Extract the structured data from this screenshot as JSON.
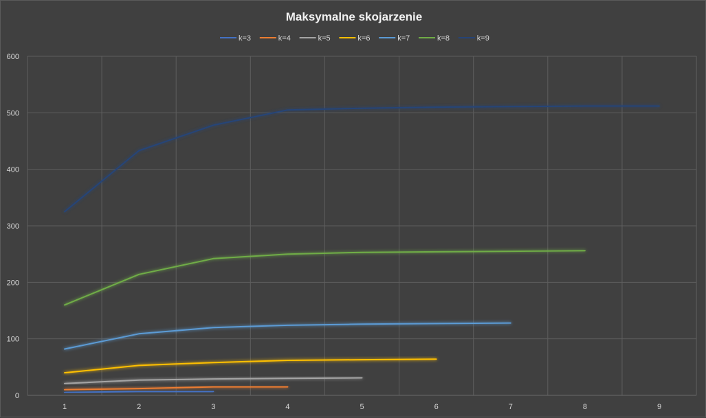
{
  "chart_data": {
    "type": "line",
    "title": "Maksymalne skojarzenie",
    "xlabel": "",
    "ylabel": "",
    "x_ticks": [
      "1",
      "2",
      "3",
      "4",
      "5",
      "6",
      "7",
      "8",
      "9"
    ],
    "y_ticks": [
      "0",
      "100",
      "200",
      "300",
      "400",
      "500",
      "600"
    ],
    "xlim": [
      1,
      9
    ],
    "ylim": [
      0,
      600
    ],
    "grid": true,
    "legend_position": "top",
    "series": [
      {
        "name": "k=3",
        "color": "#4472c4",
        "x": [
          1,
          2,
          3
        ],
        "values": [
          5,
          7,
          7
        ]
      },
      {
        "name": "k=4",
        "color": "#ed7d31",
        "x": [
          1,
          2,
          3,
          4
        ],
        "values": [
          10,
          12,
          15,
          15
        ]
      },
      {
        "name": "k=5",
        "color": "#a5a5a5",
        "x": [
          1,
          2,
          3,
          4,
          5
        ],
        "values": [
          21,
          27,
          29,
          30,
          31
        ]
      },
      {
        "name": "k=6",
        "color": "#ffc000",
        "x": [
          1,
          2,
          3,
          4,
          5,
          6
        ],
        "values": [
          40,
          53,
          58,
          62,
          63,
          64
        ]
      },
      {
        "name": "k=7",
        "color": "#5b9bd5",
        "x": [
          1,
          2,
          3,
          4,
          5,
          6,
          7
        ],
        "values": [
          82,
          109,
          120,
          124,
          126,
          127,
          128
        ]
      },
      {
        "name": "k=8",
        "color": "#70ad47",
        "x": [
          1,
          2,
          3,
          4,
          5,
          6,
          7,
          8
        ],
        "values": [
          160,
          214,
          242,
          250,
          253,
          254,
          255,
          256
        ]
      },
      {
        "name": "k=9",
        "color": "#264478",
        "x": [
          1,
          2,
          3,
          4,
          5,
          6,
          7,
          8,
          9
        ],
        "values": [
          325,
          433,
          478,
          505,
          508,
          510,
          511,
          512,
          512
        ]
      }
    ]
  }
}
